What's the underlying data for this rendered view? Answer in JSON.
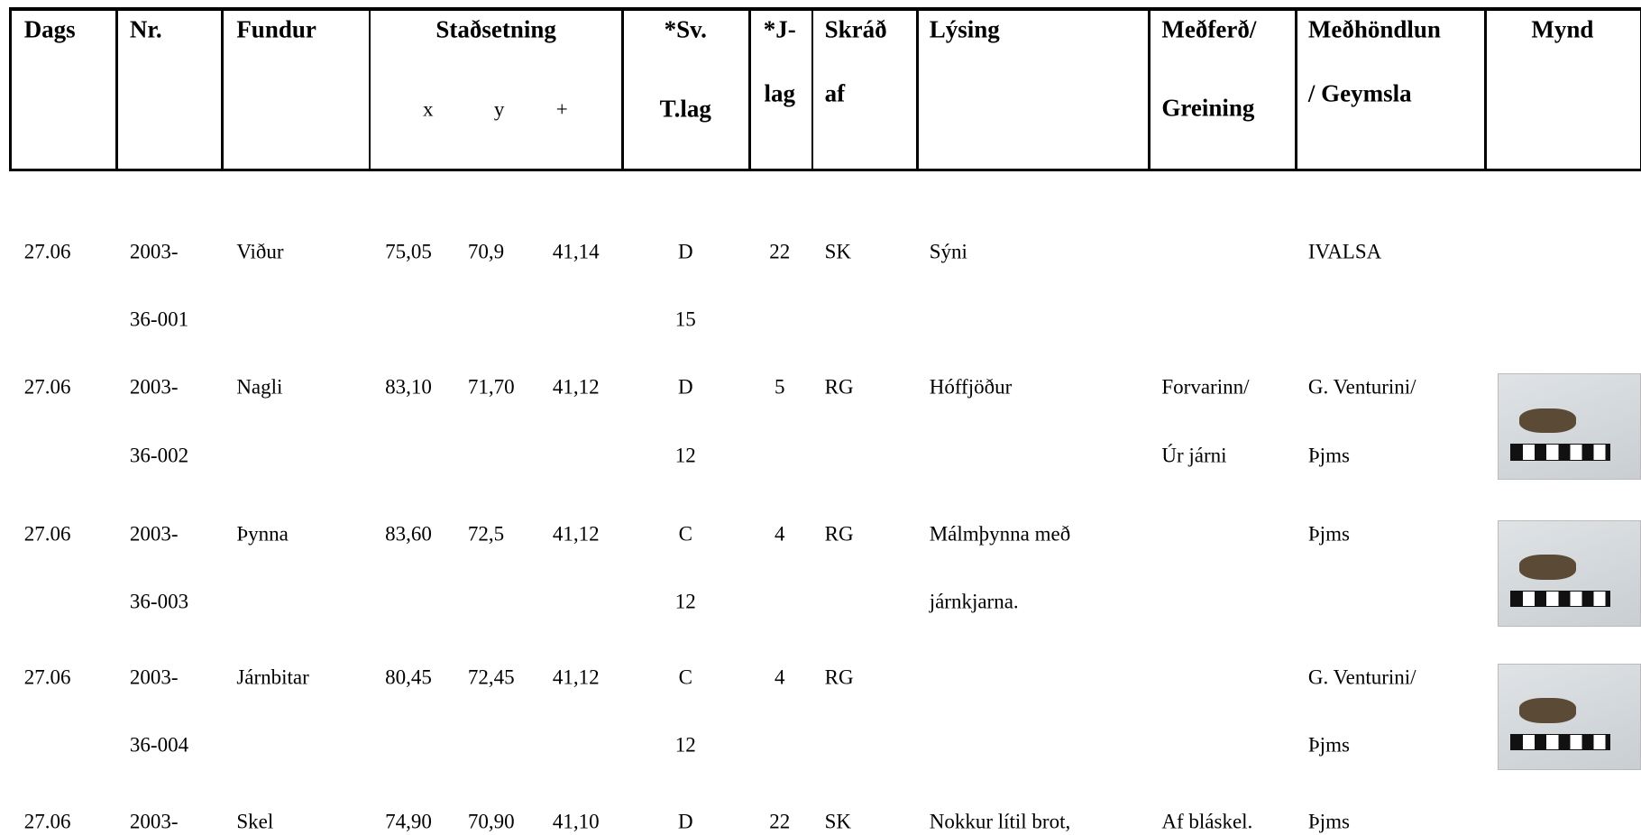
{
  "table": {
    "header": [
      {
        "key": "date",
        "lines": [
          "Dags"
        ]
      },
      {
        "key": "nr",
        "lines": [
          "Nr."
        ]
      },
      {
        "key": "find",
        "lines": [
          "Fundur"
        ]
      },
      {
        "key": "pos",
        "lines": [
          "Staðsetning"
        ],
        "sub": [
          "x",
          "y",
          "+"
        ]
      },
      {
        "key": "layer",
        "lines": [
          "*Sv.",
          "T.lag"
        ]
      },
      {
        "key": "jlayer",
        "lines": [
          "*J-",
          "lag"
        ]
      },
      {
        "key": "by",
        "lines": [
          "Skráð",
          "af"
        ]
      },
      {
        "key": "desc",
        "lines": [
          "Lýsing"
        ]
      },
      {
        "key": "treat",
        "lines": [
          "Meðferð/",
          "Greining"
        ]
      },
      {
        "key": "store",
        "lines": [
          "Meðhöndlun",
          "/ Geymsla"
        ]
      },
      {
        "key": "photo",
        "lines": [
          "Mynd"
        ]
      }
    ],
    "rows": [
      {
        "date": [
          "27.06"
        ],
        "nr": [
          "2003-",
          "36-001"
        ],
        "find": [
          "Viður"
        ],
        "x": [
          "75,05"
        ],
        "y": [
          "70,9"
        ],
        "z": [
          "41,14"
        ],
        "layer": [
          "D",
          "15"
        ],
        "jlayer": [
          "22"
        ],
        "by": [
          "SK"
        ],
        "desc": [
          "Sýni"
        ],
        "store": [
          "IVALSA"
        ]
      },
      {
        "date": [
          "27.06"
        ],
        "nr": [
          "2003-",
          "36-002"
        ],
        "find": [
          "Nagli"
        ],
        "x": [
          "83,10"
        ],
        "y": [
          "71,70"
        ],
        "z": [
          "41,12"
        ],
        "layer": [
          "D",
          "12"
        ],
        "jlayer": [
          "5"
        ],
        "by": [
          "RG"
        ],
        "desc": [
          "Hóffjöður"
        ],
        "treat": [
          "Forvarinn/",
          "Úr járni"
        ],
        "store": [
          "G. Venturini/",
          "Þjms"
        ],
        "photo": true
      },
      {
        "date": [
          "27.06"
        ],
        "nr": [
          "2003-",
          "36-003"
        ],
        "find": [
          "Þynna"
        ],
        "x": [
          "83,60"
        ],
        "y": [
          "72,5"
        ],
        "z": [
          "41,12"
        ],
        "layer": [
          "C",
          "12"
        ],
        "jlayer": [
          "4"
        ],
        "by": [
          "RG"
        ],
        "desc": [
          "Málmþynna með",
          "járnkjarna."
        ],
        "store": [
          "Þjms"
        ],
        "photo": true
      },
      {
        "date": [
          "27.06"
        ],
        "nr": [
          "2003-",
          "36-004"
        ],
        "find": [
          "Járnbitar"
        ],
        "x": [
          "80,45"
        ],
        "y": [
          "72,45"
        ],
        "z": [
          "41,12"
        ],
        "layer": [
          "C",
          "12"
        ],
        "jlayer": [
          "4"
        ],
        "by": [
          "RG"
        ],
        "store": [
          "G. Venturini/",
          "Þjms"
        ],
        "photo": true
      },
      {
        "date": [
          "27.06"
        ],
        "nr": [
          "2003-"
        ],
        "find": [
          "Skel"
        ],
        "x": [
          "74,90"
        ],
        "y": [
          "70,90"
        ],
        "z": [
          "41,10"
        ],
        "layer": [
          "D"
        ],
        "jlayer": [
          "22"
        ],
        "by": [
          "SK"
        ],
        "desc": [
          "Nokkur lítil brot,"
        ],
        "treat": [
          "Af bláskel."
        ],
        "store": [
          "Þjms"
        ]
      }
    ]
  }
}
